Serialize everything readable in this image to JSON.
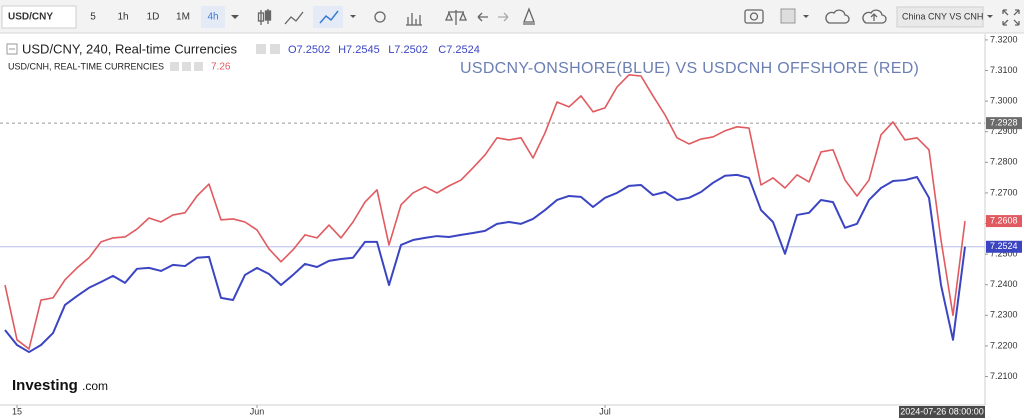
{
  "toolbar": {
    "symbol": "USD/CNY",
    "intervals": [
      "5",
      "1h",
      "1D",
      "1M",
      "4h"
    ],
    "active_interval": 4,
    "layout_name": "China CNY VS CNH"
  },
  "logo": {
    "name": "Investing",
    "suffix": ".com"
  },
  "chart_data": {
    "type": "line",
    "title": "USDCNY-ONSHORE(BLUE) VS USDCNH OFFSHORE (RED)",
    "ohlc": [
      "O7.2502",
      "H7.2545",
      "L7.2502",
      "C7.2524"
    ],
    "legend_value": "7.26",
    "categories": [
      null,
      "15",
      null,
      null,
      null,
      null,
      null,
      null,
      null,
      null,
      null,
      null,
      null,
      null,
      null,
      null,
      null,
      null,
      null,
      null,
      null,
      "Jun",
      null,
      null,
      null,
      null,
      null,
      null,
      null,
      null,
      null,
      null,
      null,
      null,
      null,
      null,
      null,
      null,
      null,
      null,
      null,
      null,
      null,
      null,
      null,
      null,
      null,
      null,
      null,
      null,
      "Jul",
      null,
      null,
      null,
      null,
      null,
      null,
      null,
      null,
      null,
      null,
      null,
      null,
      null,
      null,
      null,
      null,
      null,
      null,
      null,
      null,
      null,
      null,
      null,
      null,
      null,
      null,
      null,
      null,
      null,
      null
    ],
    "series": [
      {
        "name": "USD/CNY, 240, Real-time Currencies",
        "color": "#3b45c2",
        "values": [
          7.2252,
          7.2203,
          7.218,
          7.2203,
          7.2242,
          7.2334,
          7.2363,
          7.239,
          7.2409,
          7.2429,
          7.2406,
          7.2452,
          7.2455,
          7.2445,
          7.2465,
          7.2461,
          7.2488,
          7.2491,
          7.2357,
          7.235,
          7.2432,
          7.2455,
          7.2435,
          7.2399,
          7.2432,
          7.2468,
          7.2458,
          7.2478,
          7.2484,
          7.2488,
          7.254,
          7.254,
          7.2399,
          7.253,
          7.2546,
          7.2553,
          7.2559,
          7.2556,
          7.2563,
          7.2569,
          7.2576,
          7.2599,
          7.2605,
          7.2599,
          7.2615,
          7.2644,
          7.2677,
          7.269,
          7.2687,
          7.2654,
          7.2684,
          7.27,
          7.2723,
          7.2726,
          7.2693,
          7.2703,
          7.2677,
          7.2684,
          7.2703,
          7.2733,
          7.2756,
          7.2759,
          7.2749,
          7.2644,
          7.2605,
          7.2501,
          7.2628,
          7.2635,
          7.2677,
          7.267,
          7.2586,
          7.2599,
          7.2677,
          7.2716,
          7.2739,
          7.2742,
          7.2752,
          7.2684,
          7.2399,
          7.222,
          7.2524
        ]
      },
      {
        "name": "USD/CNH, REAL-TIME CURRENCIES",
        "color": "#e05a5f",
        "values": [
          7.2399,
          7.222,
          7.219,
          7.235,
          7.2357,
          7.2416,
          7.2455,
          7.2488,
          7.254,
          7.2553,
          7.2556,
          7.2582,
          7.2618,
          7.2605,
          7.2628,
          7.2635,
          7.269,
          7.2729,
          7.2612,
          7.2615,
          7.2605,
          7.2579,
          7.2517,
          7.2475,
          7.2514,
          7.2563,
          7.2553,
          7.2595,
          7.2553,
          7.2605,
          7.267,
          7.271,
          7.253,
          7.2661,
          7.27,
          7.272,
          7.27,
          7.2723,
          7.2742,
          7.2782,
          7.2824,
          7.288,
          7.2873,
          7.288,
          7.2814,
          7.2896,
          7.2997,
          7.2981,
          7.3017,
          7.2965,
          7.2978,
          7.3046,
          7.3086,
          7.3082,
          7.3017,
          7.2955,
          7.288,
          7.286,
          7.2876,
          7.2883,
          7.2903,
          7.2916,
          7.2912,
          7.2726,
          7.2749,
          7.2716,
          7.2759,
          7.2736,
          7.2834,
          7.2841,
          7.2742,
          7.269,
          7.2742,
          7.289,
          7.2932,
          7.2873,
          7.288,
          7.2841,
          7.2546,
          7.23,
          7.2608
        ]
      }
    ],
    "ylim": [
      7.2007,
      7.3216
    ],
    "yticks": [
      {
        "value": 7.21,
        "label": "7.2100"
      },
      {
        "value": 7.22,
        "label": "7.2200"
      },
      {
        "value": 7.23,
        "label": "7.2300"
      },
      {
        "value": 7.24,
        "label": "7.2400"
      },
      {
        "value": 7.25,
        "label": "7.2500"
      },
      {
        "value": 7.26,
        "label": "7.2600"
      },
      {
        "value": 7.27,
        "label": "7.2700"
      },
      {
        "value": 7.28,
        "label": "7.2800"
      },
      {
        "value": 7.29,
        "label": "7.2900"
      },
      {
        "value": 7.3,
        "label": "7.3000"
      },
      {
        "value": 7.31,
        "label": "7.3100"
      },
      {
        "value": 7.32,
        "label": "7.3200"
      }
    ],
    "price_tags": [
      {
        "value": 7.2608,
        "label": "7.2608",
        "color": "#e05a5f"
      },
      {
        "value": 7.2524,
        "label": "7.2524",
        "color": "#3b45c2"
      }
    ],
    "crosshair": {
      "value": 7.2928,
      "label": "7.2928",
      "date": "2024-07-26 08:00:00"
    },
    "grid": false
  }
}
